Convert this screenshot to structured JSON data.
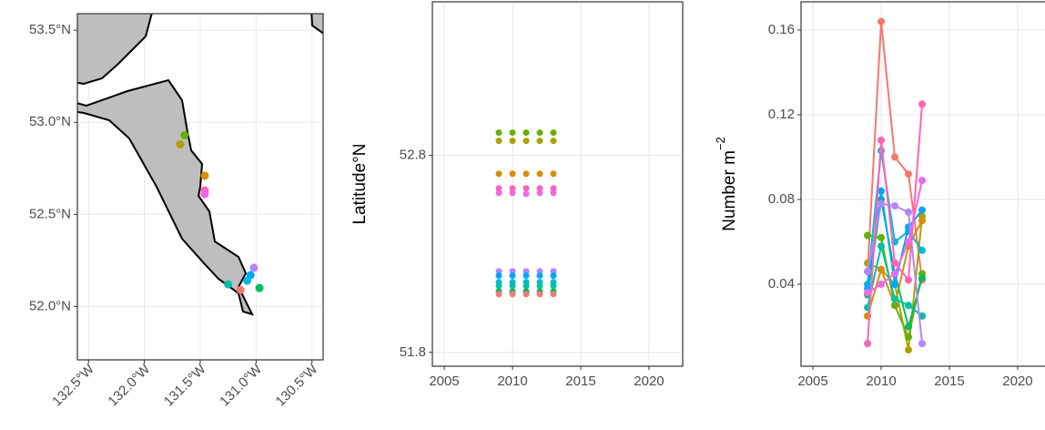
{
  "chart_data": [
    {
      "type": "map",
      "grid": true,
      "xlim": [
        -132.6,
        -130.4
      ],
      "ylim": [
        51.71,
        53.59
      ],
      "xticks": [
        {
          "value": -132.5,
          "label": "132.5°W"
        },
        {
          "value": -132.0,
          "label": "132.0°W"
        },
        {
          "value": -131.5,
          "label": "131.5°W"
        },
        {
          "value": -131.0,
          "label": "131.0°W"
        },
        {
          "value": -130.5,
          "label": "130.5°W"
        }
      ],
      "yticks": [
        {
          "value": 52.0,
          "label": "52.0°N"
        },
        {
          "value": 52.5,
          "label": "52.5°N"
        },
        {
          "value": 53.0,
          "label": "53.0°N"
        },
        {
          "value": 53.5,
          "label": "53.5°N"
        }
      ],
      "x": [
        -131.64,
        -131.68,
        -131.46,
        -131.46,
        -131.46,
        -131.02,
        -131.05,
        -131.08,
        -131.25,
        -130.97,
        -131.14
      ],
      "y": [
        52.93,
        52.88,
        52.71,
        52.63,
        52.61,
        52.21,
        52.17,
        52.14,
        52.12,
        52.1,
        52.09
      ],
      "colors": [
        "#64B200",
        "#AEA200",
        "#DB8E00",
        "#FF63B6",
        "#EF67EB",
        "#B385FF",
        "#00A6FF",
        "#00BADE",
        "#00C1A7",
        "#00BD5C",
        "#F8766D"
      ]
    },
    {
      "type": "scatter",
      "grid": true,
      "y_label": "Latitude°N",
      "xlim": [
        2004.13,
        2022.47
      ],
      "ylim": [
        51.73,
        53.58
      ],
      "xticks": [
        2005,
        2010,
        2015,
        2020
      ],
      "yticks": [
        51.8,
        52.8
      ],
      "x": [
        2009,
        2010,
        2011,
        2012,
        2013
      ],
      "series": [
        {
          "color": "#64B200",
          "values": [
            52.916,
            52.916,
            52.916,
            52.916,
            52.916
          ]
        },
        {
          "color": "#AEA200",
          "values": [
            52.874,
            52.874,
            52.874,
            52.874,
            52.874
          ]
        },
        {
          "color": "#DB8E00",
          "values": [
            52.707,
            52.707,
            52.707,
            52.707,
            52.707
          ]
        },
        {
          "color": "#FF63B6",
          "values": [
            52.633,
            52.633,
            52.633,
            52.633,
            52.633
          ]
        },
        {
          "color": "#EF67EB",
          "values": [
            52.61,
            52.61,
            52.605,
            52.61,
            52.61
          ]
        },
        {
          "color": "#B385FF",
          "values": [
            52.212,
            52.212,
            52.212,
            52.212,
            52.212
          ]
        },
        {
          "color": "#00A6FF",
          "values": [
            52.19,
            52.19,
            52.19,
            52.19,
            52.19
          ]
        },
        {
          "color": "#00BADE",
          "values": [
            52.157,
            52.157,
            52.157,
            52.157,
            52.157
          ]
        },
        {
          "color": "#00C1A7",
          "values": [
            52.138,
            52.138,
            52.138,
            52.138,
            52.138
          ]
        },
        {
          "color": "#00BD5C",
          "values": [
            52.11,
            52.11,
            52.11,
            52.11,
            52.11
          ]
        },
        {
          "color": "#F8766D",
          "values": [
            52.096,
            52.096,
            52.096,
            52.096,
            52.096
          ]
        }
      ]
    },
    {
      "type": "line",
      "grid": true,
      "y_label": "Number m",
      "y_label_superscript": "−2",
      "xlim": [
        2004.13,
        2022.47
      ],
      "ylim": [
        0.0013,
        0.1733
      ],
      "xticks": [
        2005,
        2010,
        2015,
        2020
      ],
      "yticks": [
        0.04,
        0.08,
        0.12,
        0.16
      ],
      "x": [
        2009,
        2010,
        2011,
        2012,
        2013
      ],
      "series": [
        {
          "color": "#F8766D",
          "values": [
            0.046,
            0.164,
            0.1,
            0.092,
            0.042
          ]
        },
        {
          "color": "#AEA200",
          "values": [
            0.05,
            0.047,
            0.04,
            0.009,
            0.072
          ]
        },
        {
          "color": "#DB8E00",
          "values": [
            0.025,
            0.047,
            0.03,
            0.058,
            0.07
          ]
        },
        {
          "color": "#64B200",
          "values": [
            0.063,
            0.062,
            0.03,
            0.015,
            0.045
          ]
        },
        {
          "color": "#00BD5C",
          "values": [
            0.035,
            0.08,
            0.045,
            0.02,
            0.043
          ]
        },
        {
          "color": "#00C1A7",
          "values": [
            0.029,
            0.058,
            0.033,
            0.03,
            0.025
          ]
        },
        {
          "color": "#00BADE",
          "values": [
            0.04,
            0.103,
            0.06,
            0.065,
            0.056
          ]
        },
        {
          "color": "#00A6FF",
          "values": [
            0.038,
            0.084,
            0.04,
            0.067,
            0.075
          ]
        },
        {
          "color": "#B385FF",
          "values": [
            0.046,
            0.078,
            0.077,
            0.074,
            0.012
          ]
        },
        {
          "color": "#FF63B6",
          "values": [
            0.012,
            0.108,
            0.05,
            0.042,
            0.125
          ]
        },
        {
          "color": "#EF67EB",
          "values": [
            0.036,
            0.04,
            0.045,
            0.06,
            0.089
          ]
        }
      ]
    }
  ]
}
